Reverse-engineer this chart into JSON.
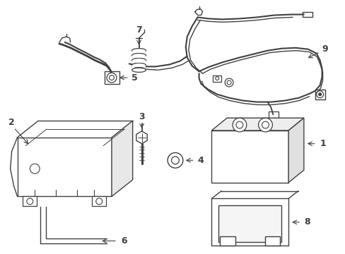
{
  "background_color": "#ffffff",
  "line_color": "#404040",
  "fig_width": 4.89,
  "fig_height": 3.6,
  "dpi": 100
}
